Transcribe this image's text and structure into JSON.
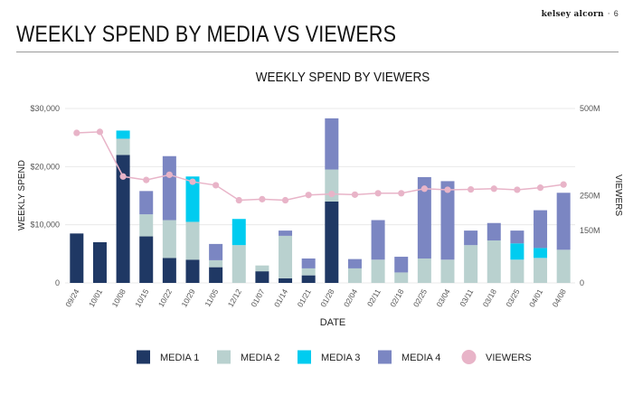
{
  "brand": {
    "name": "kelsey alcorn",
    "separator": "·",
    "page_number": "6"
  },
  "page_title": "WEEKLY SPEND BY MEDIA VS VIEWERS",
  "colors": {
    "media1": "#1f3864",
    "media2": "#b9d1cf",
    "media3": "#00ccf0",
    "media4": "#7b86c2",
    "viewers": "#e8b4c8",
    "axis_text": "#555555",
    "gridline": "#e9e9e9"
  },
  "chart_data": {
    "type": "bar",
    "stacked": true,
    "title": "WEEKLY SPEND BY VIEWERS",
    "xlabel": "DATE",
    "ylabel": "WEEKLY SPEND",
    "y2label": "VIEWERS",
    "ylim": [
      0,
      30000
    ],
    "y2lim": [
      0,
      500
    ],
    "y_ticks": [
      {
        "value": 0,
        "label": "0"
      },
      {
        "value": 10000,
        "label": "$10,000"
      },
      {
        "value": 20000,
        "label": "$20,000"
      },
      {
        "value": 30000,
        "label": "$30,000"
      }
    ],
    "y2_ticks": [
      {
        "value": 0,
        "label": "0"
      },
      {
        "value": 150,
        "label": "150M"
      },
      {
        "value": 250,
        "label": "250M"
      },
      {
        "value": 500,
        "label": "500M"
      }
    ],
    "categories": [
      "09/24",
      "10/01",
      "10/08",
      "10/15",
      "10/22",
      "10/29",
      "11/05",
      "12/12",
      "01/07",
      "01/14",
      "01/21",
      "01/28",
      "02/04",
      "02/11",
      "02/18",
      "02/25",
      "03/04",
      "03/11",
      "03/18",
      "03/25",
      "04/01",
      "04/08"
    ],
    "series": [
      {
        "name": "MEDIA 1",
        "color_key": "media1",
        "values": [
          8500,
          7000,
          22000,
          8000,
          4300,
          4000,
          2700,
          0,
          2000,
          800,
          1300,
          14000,
          0,
          0,
          0,
          0,
          0,
          0,
          0,
          0,
          0,
          0
        ]
      },
      {
        "name": "MEDIA 2",
        "color_key": "media2",
        "values": [
          0,
          0,
          2800,
          3800,
          6500,
          6500,
          1200,
          6500,
          1000,
          7300,
          1200,
          5500,
          2500,
          4000,
          1800,
          4200,
          4000,
          6500,
          7300,
          4000,
          4300,
          5700
        ]
      },
      {
        "name": "MEDIA 3",
        "color_key": "media3",
        "values": [
          0,
          0,
          1400,
          0,
          0,
          7800,
          0,
          4500,
          0,
          0,
          0,
          0,
          0,
          0,
          0,
          0,
          0,
          0,
          0,
          2800,
          1700,
          0
        ]
      },
      {
        "name": "MEDIA 4",
        "color_key": "media4",
        "values": [
          0,
          0,
          0,
          4000,
          11000,
          0,
          2800,
          0,
          0,
          900,
          1700,
          8800,
          1600,
          6800,
          2700,
          14000,
          13500,
          2500,
          3000,
          2200,
          6500,
          9800
        ]
      }
    ],
    "line_series": {
      "name": "VIEWERS",
      "color_key": "viewers",
      "axis": "right",
      "values": [
        430,
        433,
        305,
        295,
        310,
        290,
        280,
        237,
        240,
        237,
        252,
        255,
        253,
        257,
        257,
        270,
        267,
        268,
        270,
        267,
        273,
        282
      ]
    },
    "grid": true,
    "legend_position": "bottom"
  }
}
